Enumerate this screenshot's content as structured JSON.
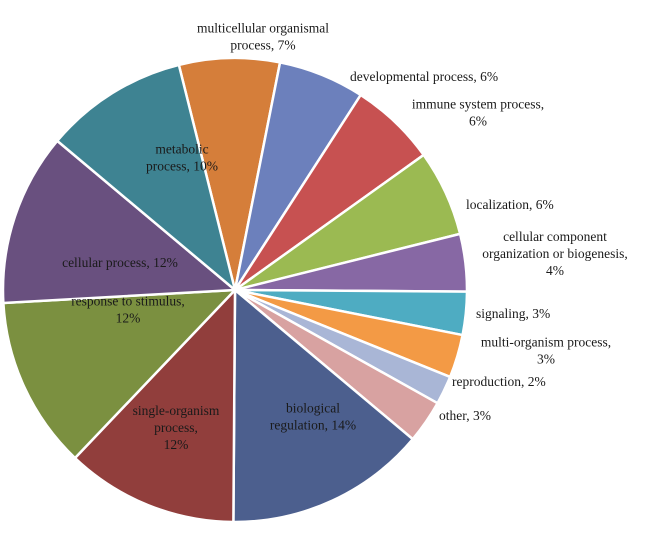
{
  "chart_data": {
    "type": "pie",
    "title": "",
    "slices": [
      {
        "name": "multicellular organismal process",
        "value": 7,
        "color": "#D57E3A",
        "label": [
          "multicellular organismal",
          "process, 7%"
        ]
      },
      {
        "name": "developmental process",
        "value": 6,
        "color": "#6C80BC",
        "label": [
          "developmental process, 6%"
        ]
      },
      {
        "name": "immune system process",
        "value": 6,
        "color": "#C75151",
        "label": [
          "immune system process,",
          "6%"
        ]
      },
      {
        "name": "localization",
        "value": 6,
        "color": "#9BBA52",
        "label": [
          "localization, 6%"
        ]
      },
      {
        "name": "cellular component organization or biogenesis",
        "value": 4,
        "color": "#8768A4",
        "label": [
          "cellular component",
          "organization or biogenesis,",
          "4%"
        ]
      },
      {
        "name": "signaling",
        "value": 3,
        "color": "#4EACC2",
        "label": [
          "signaling, 3%"
        ]
      },
      {
        "name": "multi-organism process",
        "value": 3,
        "color": "#F39A45",
        "label": [
          "multi-organism process,",
          "3%"
        ]
      },
      {
        "name": "reproduction",
        "value": 2,
        "color": "#A9B6D6",
        "label": [
          "reproduction, 2%"
        ]
      },
      {
        "name": "other",
        "value": 3,
        "color": "#D8A2A1",
        "label": [
          "other, 3%"
        ]
      },
      {
        "name": "biological regulation",
        "value": 14,
        "color": "#4C5F8E",
        "label": [
          "biological",
          "regulation, 14%"
        ]
      },
      {
        "name": "single-organism process",
        "value": 12,
        "color": "#913E3C",
        "label": [
          "single-organism",
          "process,",
          "12%"
        ]
      },
      {
        "name": "response to stimulus",
        "value": 12,
        "color": "#7B9040",
        "label": [
          "response to stimulus,",
          "12%"
        ]
      },
      {
        "name": "cellular process",
        "value": 12,
        "color": "#69507F",
        "label": [
          "cellular process, 12%"
        ]
      },
      {
        "name": "metabolic process",
        "value": 10,
        "color": "#3E8392",
        "label": [
          "metabolic",
          "process, 10%"
        ]
      }
    ]
  }
}
